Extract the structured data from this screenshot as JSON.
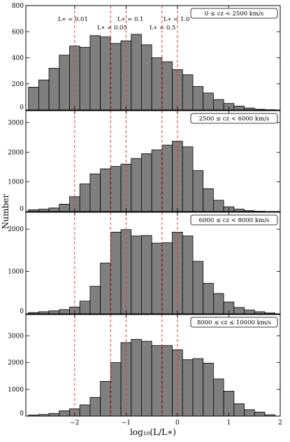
{
  "chart_data": [
    {
      "type": "bar",
      "label": "0 ≤ cz < 2500 km/s",
      "ylim": [
        0,
        800
      ],
      "yticks": [
        0,
        200,
        400,
        600,
        800
      ],
      "values": [
        175,
        230,
        320,
        420,
        490,
        480,
        570,
        560,
        510,
        530,
        580,
        500,
        400,
        370,
        310,
        270,
        180,
        130,
        80,
        50,
        30,
        15,
        5,
        2
      ]
    },
    {
      "type": "bar",
      "label": "2500 ≤ cz < 6000 km/s",
      "ylim": [
        0,
        3400
      ],
      "yticks": [
        0,
        1000,
        2000,
        3000
      ],
      "values": [
        60,
        80,
        120,
        250,
        500,
        930,
        1270,
        1440,
        1520,
        1600,
        1790,
        1950,
        2080,
        2240,
        2370,
        2180,
        1380,
        770,
        380,
        160,
        80,
        30,
        10,
        3
      ]
    },
    {
      "type": "bar",
      "label": "6000 ≤ cz < 8000 km/s",
      "ylim": [
        0,
        2400
      ],
      "yticks": [
        0,
        1000,
        2000
      ],
      "values": [
        30,
        50,
        70,
        100,
        160,
        300,
        650,
        1200,
        1930,
        1990,
        1840,
        1850,
        1670,
        1680,
        1930,
        1840,
        1240,
        720,
        480,
        280,
        150,
        90,
        50,
        20
      ]
    },
    {
      "type": "bar",
      "label": "8000 ≤ cz ≤ 10000 km/s",
      "ylim": [
        0,
        3800
      ],
      "yticks": [
        0,
        1000,
        2000,
        3000
      ],
      "values": [
        40,
        60,
        100,
        200,
        270,
        420,
        700,
        1300,
        2000,
        2750,
        2870,
        2800,
        2640,
        2640,
        2480,
        2110,
        2150,
        1980,
        1390,
        930,
        460,
        240,
        150,
        50
      ]
    }
  ],
  "bins": {
    "start": -2.9,
    "width": 0.2,
    "count": 24
  },
  "xaxis": {
    "label": "log₁₀(L/L∗)",
    "xlim": [
      -2.95,
      2.0
    ],
    "ticks": [
      -2,
      -1,
      0,
      1,
      2
    ],
    "tick_labels": [
      "−2",
      "−1",
      "0",
      "1",
      "2"
    ]
  },
  "yaxis": {
    "label": "Number"
  },
  "reference_lines": {
    "color": "#e8393a",
    "style": "dashed",
    "lines": [
      {
        "x": -2.0,
        "label": "L∗ = 0.01"
      },
      {
        "x": -1.301,
        "label": "L∗ = 0.05"
      },
      {
        "x": -1.0,
        "label": "L∗ = 0.1"
      },
      {
        "x": -0.301,
        "label": "L∗ = 0.5"
      },
      {
        "x": 0.0,
        "label": "L∗ = 1.0"
      }
    ]
  },
  "colors": {
    "bar_fill": "#7f7f7f",
    "bar_stroke": "#000000",
    "ref_line": "#e8393a"
  }
}
